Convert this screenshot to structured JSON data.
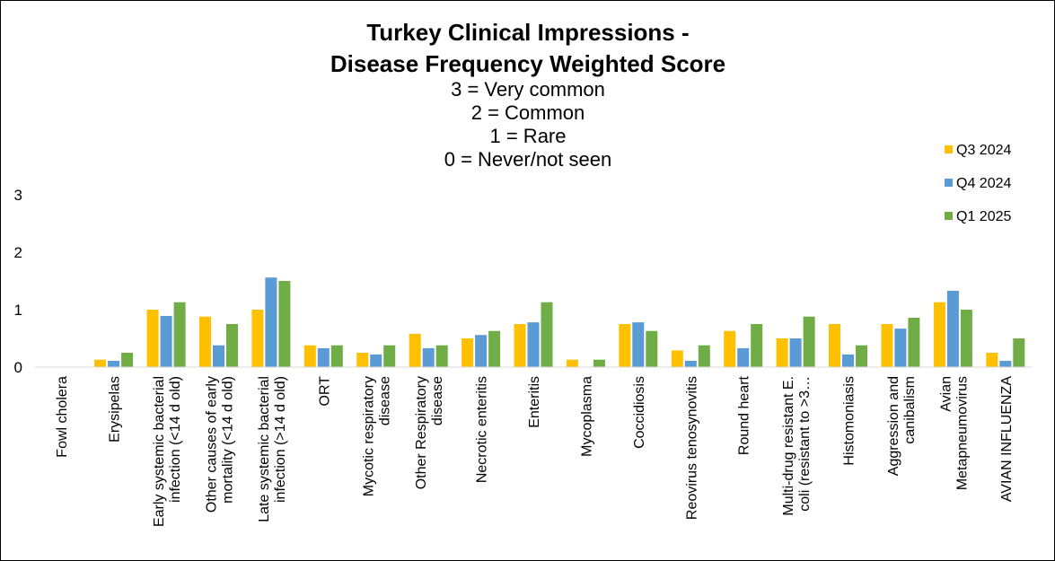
{
  "chart_data": {
    "type": "bar",
    "title": [
      "Turkey Clinical Impressions -",
      "Disease Frequency Weighted Score"
    ],
    "subtitle": [
      "3 = Very common",
      "2 = Common",
      "1 = Rare",
      "0 = Never/not seen"
    ],
    "ylim": [
      0,
      3
    ],
    "yticks": [
      0,
      1,
      2,
      3
    ],
    "grid": false,
    "legend_position": "right",
    "categories": [
      [
        "Fowl cholera"
      ],
      [
        "Erysipelas"
      ],
      [
        "Early systemic bacterial",
        "infection (<14 d old)"
      ],
      [
        "Other causes of early",
        "mortality (<14 d old)"
      ],
      [
        "Late systemic bacterial",
        "infection (>14 d old)"
      ],
      [
        "ORT"
      ],
      [
        "Mycotic respiratory",
        "disease"
      ],
      [
        "Other Respiratory",
        "disease"
      ],
      [
        "Necrotic enteritis"
      ],
      [
        "Enteritis"
      ],
      [
        "Mycoplasma"
      ],
      [
        "Coccidiosis"
      ],
      [
        "Reovirus tenosynovitis"
      ],
      [
        "Round heart"
      ],
      [
        "Multi-drug resistant  E.",
        "coli (resistant to >3…"
      ],
      [
        "Histomoniasis"
      ],
      [
        "Aggression and",
        "canibalism"
      ],
      [
        "Avian",
        "Metapneumovirus"
      ],
      [
        "AVIAN INFLUENZA"
      ]
    ],
    "series": [
      {
        "name": "Q3 2024",
        "color": "#FFC000",
        "values": [
          0,
          0.13,
          1.0,
          0.88,
          1.0,
          0.38,
          0.25,
          0.58,
          0.5,
          0.75,
          0.13,
          0.75,
          0.29,
          0.63,
          0.5,
          0.75,
          0.75,
          1.13,
          0.25
        ]
      },
      {
        "name": "Q4 2024",
        "color": "#5B9BD5",
        "values": [
          0,
          0.11,
          0.89,
          0.38,
          1.56,
          0.33,
          0.22,
          0.33,
          0.56,
          0.78,
          0,
          0.78,
          0.11,
          0.33,
          0.5,
          0.22,
          0.67,
          1.33,
          0.11
        ]
      },
      {
        "name": "Q1 2025",
        "color": "#70AD47",
        "values": [
          0,
          0.25,
          1.13,
          0.75,
          1.5,
          0.38,
          0.38,
          0.38,
          0.63,
          1.13,
          0.13,
          0.63,
          0.38,
          0.75,
          0.88,
          0.38,
          0.86,
          1.0,
          0.5
        ]
      }
    ]
  }
}
